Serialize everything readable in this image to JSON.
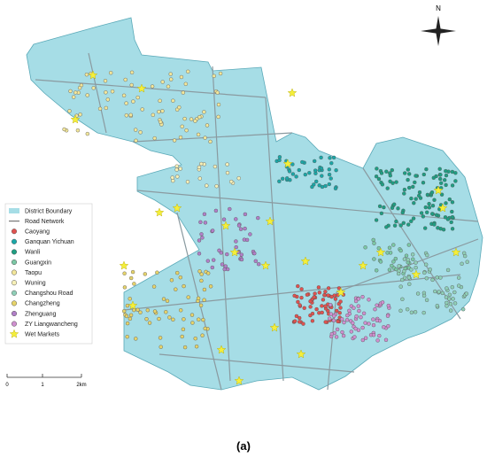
{
  "legend": {
    "items": [
      {
        "label": "District Boundary",
        "shape": "rect",
        "color": "#a6dde6"
      },
      {
        "label": "Road Network",
        "shape": "line",
        "color": "#777777"
      },
      {
        "label": "Caoyang",
        "shape": "circle",
        "color": "#e0524f"
      },
      {
        "label": "Ganquan Yichuan",
        "shape": "circle",
        "color": "#1aa7a7"
      },
      {
        "label": "Wanli",
        "shape": "circle",
        "color": "#1e9e82"
      },
      {
        "label": "Guangxin",
        "shape": "circle",
        "color": "#7cc9a6"
      },
      {
        "label": "Taopu",
        "shape": "circle",
        "color": "#f2e69a"
      },
      {
        "label": "Wuning",
        "shape": "circle",
        "color": "#f6f0b8"
      },
      {
        "label": "Changshou Road",
        "shape": "circle",
        "color": "#8fcfb7"
      },
      {
        "label": "Changzheng",
        "shape": "circle",
        "color": "#e6d36a"
      },
      {
        "label": "Zhenguang",
        "shape": "circle",
        "color": "#b17fc8"
      },
      {
        "label": "ZY Liangwancheng",
        "shape": "circle",
        "color": "#cf8fcf"
      },
      {
        "label": "Wet Markets",
        "shape": "star",
        "color": "#f4ee3a"
      }
    ]
  },
  "compass": {
    "label": "N"
  },
  "scale_bar": {
    "labels": [
      "0",
      "1",
      "2km"
    ]
  },
  "caption": "(a)"
}
